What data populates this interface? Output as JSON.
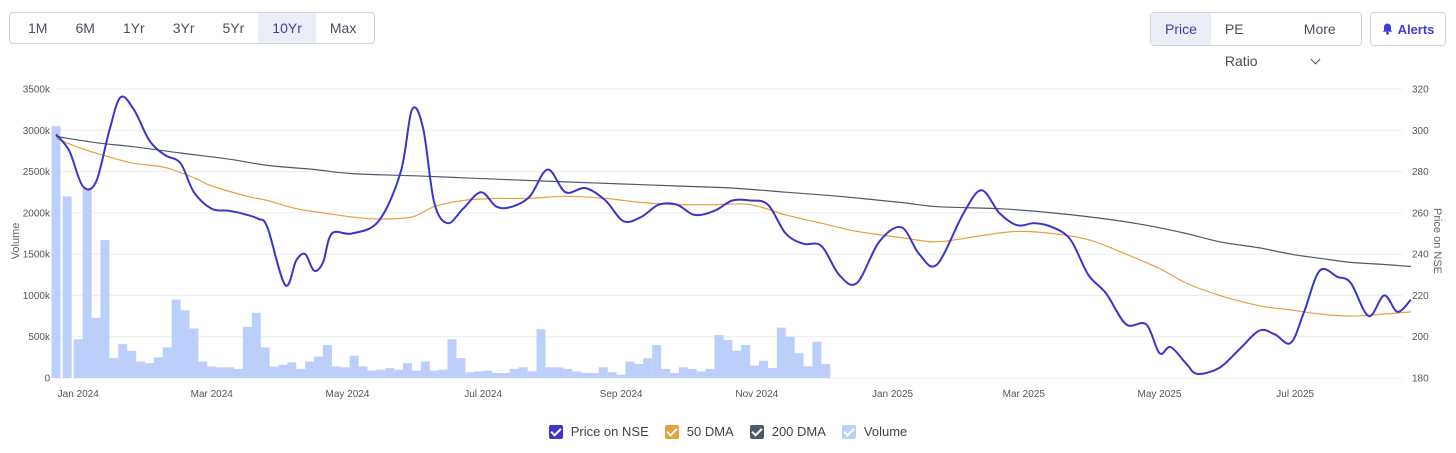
{
  "toolbar": {
    "ranges": [
      "1M",
      "6M",
      "1Yr",
      "3Yr",
      "5Yr",
      "10Yr",
      "Max"
    ],
    "active_range": "10Yr",
    "modes": [
      "Price",
      "PE Ratio"
    ],
    "active_mode": "Price",
    "more_label": "More",
    "alerts_label": "Alerts"
  },
  "colors": {
    "price": "#3b35c9",
    "dma50": "#e6a23c",
    "dma200": "#4d5a6a",
    "volume": "#bccffa"
  },
  "chart_data": {
    "type": "line",
    "ylabel_left": "Volume",
    "ylabel_right": "Price on NSE",
    "left_ticks": [
      "0",
      "500k",
      "1000k",
      "1500k",
      "2000k",
      "2500k",
      "3000k",
      "3500k"
    ],
    "right_ticks": [
      "180",
      "200",
      "220",
      "240",
      "260",
      "280",
      "300",
      "320"
    ],
    "ylim_left": [
      0,
      3500000
    ],
    "ylim_right": [
      180,
      320
    ],
    "x_ticks": [
      "Jan 2024",
      "Mar 2024",
      "May 2024",
      "Jul 2024",
      "Sep 2024",
      "Nov 2024",
      "Jan 2025",
      "Mar 2025",
      "May 2025",
      "Jul 2025"
    ],
    "x_tick_dates": [
      "2024-01-01",
      "2024-03-01",
      "2024-05-01",
      "2024-07-01",
      "2024-09-01",
      "2024-11-01",
      "2025-01-01",
      "2025-03-01",
      "2025-05-01",
      "2025-07-01"
    ],
    "x_range": [
      "2023-12-22",
      "2025-08-18"
    ],
    "legend": [
      "Price on NSE",
      "50 DMA",
      "200 DMA",
      "Volume"
    ],
    "legend_position": "bottom",
    "grid": true,
    "series": [
      {
        "name": "Price on NSE",
        "axis": "right",
        "points": [
          [
            "2023-12-22",
            298
          ],
          [
            "2023-12-28",
            290
          ],
          [
            "2024-01-03",
            273
          ],
          [
            "2024-01-09",
            275
          ],
          [
            "2024-01-15",
            300
          ],
          [
            "2024-01-20",
            316
          ],
          [
            "2024-01-26",
            310
          ],
          [
            "2024-02-02",
            295
          ],
          [
            "2024-02-09",
            288
          ],
          [
            "2024-02-16",
            284
          ],
          [
            "2024-02-22",
            270
          ],
          [
            "2024-03-01",
            262
          ],
          [
            "2024-03-09",
            261
          ],
          [
            "2024-03-17",
            259
          ],
          [
            "2024-03-22",
            257
          ],
          [
            "2024-03-26",
            253
          ],
          [
            "2024-04-03",
            225
          ],
          [
            "2024-04-08",
            237
          ],
          [
            "2024-04-12",
            240
          ],
          [
            "2024-04-16",
            232
          ],
          [
            "2024-04-20",
            236
          ],
          [
            "2024-04-24",
            250
          ],
          [
            "2024-05-03",
            250
          ],
          [
            "2024-05-15",
            256
          ],
          [
            "2024-05-25",
            280
          ],
          [
            "2024-05-30",
            310
          ],
          [
            "2024-06-04",
            301
          ],
          [
            "2024-06-09",
            265
          ],
          [
            "2024-06-15",
            255
          ],
          [
            "2024-06-22",
            262
          ],
          [
            "2024-06-30",
            270
          ],
          [
            "2024-07-07",
            263
          ],
          [
            "2024-07-14",
            263
          ],
          [
            "2024-07-22",
            268
          ],
          [
            "2024-07-30",
            281
          ],
          [
            "2024-08-07",
            270
          ],
          [
            "2024-08-16",
            272
          ],
          [
            "2024-08-25",
            266
          ],
          [
            "2024-09-02",
            256
          ],
          [
            "2024-09-10",
            258
          ],
          [
            "2024-09-18",
            264
          ],
          [
            "2024-09-26",
            264
          ],
          [
            "2024-10-04",
            259
          ],
          [
            "2024-10-13",
            261
          ],
          [
            "2024-10-21",
            266
          ],
          [
            "2024-10-29",
            266
          ],
          [
            "2024-11-06",
            264
          ],
          [
            "2024-11-14",
            250
          ],
          [
            "2024-11-22",
            245
          ],
          [
            "2024-11-30",
            244
          ],
          [
            "2024-12-08",
            230
          ],
          [
            "2024-12-16",
            226
          ],
          [
            "2024-12-26",
            246
          ],
          [
            "2025-01-05",
            253
          ],
          [
            "2025-01-13",
            240
          ],
          [
            "2025-01-21",
            235
          ],
          [
            "2025-02-02",
            260
          ],
          [
            "2025-02-10",
            271
          ],
          [
            "2025-02-18",
            260
          ],
          [
            "2025-02-26",
            254
          ],
          [
            "2025-03-06",
            255
          ],
          [
            "2025-03-14",
            253
          ],
          [
            "2025-03-22",
            247
          ],
          [
            "2025-03-30",
            230
          ],
          [
            "2025-04-07",
            221
          ],
          [
            "2025-04-16",
            206
          ],
          [
            "2025-04-25",
            206
          ],
          [
            "2025-05-01",
            192
          ],
          [
            "2025-05-06",
            195
          ],
          [
            "2025-05-13",
            187
          ],
          [
            "2025-05-18",
            182
          ],
          [
            "2025-05-28",
            185
          ],
          [
            "2025-06-06",
            194
          ],
          [
            "2025-06-15",
            203
          ],
          [
            "2025-06-22",
            201
          ],
          [
            "2025-06-29",
            197
          ],
          [
            "2025-07-05",
            212
          ],
          [
            "2025-07-12",
            232
          ],
          [
            "2025-07-20",
            229
          ],
          [
            "2025-07-26",
            226
          ],
          [
            "2025-08-03",
            210
          ],
          [
            "2025-08-10",
            220
          ],
          [
            "2025-08-16",
            212
          ],
          [
            "2025-08-22",
            218
          ]
        ]
      },
      {
        "name": "50 DMA",
        "axis": "right",
        "points": [
          [
            "2023-12-22",
            296
          ],
          [
            "2024-01-03",
            291
          ],
          [
            "2024-01-15",
            287
          ],
          [
            "2024-01-26",
            284
          ],
          [
            "2024-02-09",
            282
          ],
          [
            "2024-02-22",
            277
          ],
          [
            "2024-03-01",
            273
          ],
          [
            "2024-03-17",
            268
          ],
          [
            "2024-03-26",
            266
          ],
          [
            "2024-04-08",
            262
          ],
          [
            "2024-04-20",
            260
          ],
          [
            "2024-05-03",
            258
          ],
          [
            "2024-05-15",
            257
          ],
          [
            "2024-05-30",
            258
          ],
          [
            "2024-06-09",
            263
          ],
          [
            "2024-06-22",
            266
          ],
          [
            "2024-07-07",
            267
          ],
          [
            "2024-07-22",
            267
          ],
          [
            "2024-08-07",
            268
          ],
          [
            "2024-08-25",
            267
          ],
          [
            "2024-09-10",
            265
          ],
          [
            "2024-09-26",
            264
          ],
          [
            "2024-10-13",
            264
          ],
          [
            "2024-10-29",
            264
          ],
          [
            "2024-11-14",
            259
          ],
          [
            "2024-11-30",
            255
          ],
          [
            "2024-12-16",
            251
          ],
          [
            "2025-01-05",
            248
          ],
          [
            "2025-01-21",
            246
          ],
          [
            "2025-02-10",
            249
          ],
          [
            "2025-02-26",
            251
          ],
          [
            "2025-03-14",
            250
          ],
          [
            "2025-03-30",
            247
          ],
          [
            "2025-04-16",
            240
          ],
          [
            "2025-05-01",
            233
          ],
          [
            "2025-05-13",
            226
          ],
          [
            "2025-05-28",
            220
          ],
          [
            "2025-06-15",
            215
          ],
          [
            "2025-06-29",
            213
          ],
          [
            "2025-07-12",
            211
          ],
          [
            "2025-07-26",
            210
          ],
          [
            "2025-08-10",
            211
          ],
          [
            "2025-08-22",
            212
          ]
        ]
      },
      {
        "name": "200 DMA",
        "axis": "right",
        "points": [
          [
            "2023-12-22",
            297
          ],
          [
            "2024-01-09",
            294
          ],
          [
            "2024-01-26",
            292
          ],
          [
            "2024-02-16",
            289
          ],
          [
            "2024-03-09",
            286
          ],
          [
            "2024-03-26",
            283
          ],
          [
            "2024-04-16",
            281
          ],
          [
            "2024-05-03",
            279
          ],
          [
            "2024-05-30",
            278
          ],
          [
            "2024-06-22",
            277
          ],
          [
            "2024-07-14",
            276
          ],
          [
            "2024-08-07",
            275
          ],
          [
            "2024-09-02",
            274
          ],
          [
            "2024-09-26",
            273
          ],
          [
            "2024-10-21",
            272
          ],
          [
            "2024-11-14",
            270
          ],
          [
            "2024-12-08",
            268
          ],
          [
            "2025-01-05",
            265
          ],
          [
            "2025-01-21",
            263
          ],
          [
            "2025-02-18",
            262
          ],
          [
            "2025-03-14",
            260
          ],
          [
            "2025-04-07",
            257
          ],
          [
            "2025-04-25",
            254
          ],
          [
            "2025-05-13",
            250
          ],
          [
            "2025-05-28",
            246
          ],
          [
            "2025-06-15",
            243
          ],
          [
            "2025-06-29",
            240
          ],
          [
            "2025-07-12",
            238
          ],
          [
            "2025-07-26",
            236
          ],
          [
            "2025-08-10",
            235
          ],
          [
            "2025-08-22",
            234
          ]
        ]
      },
      {
        "name": "Volume",
        "axis": "left",
        "type": "bar",
        "points": [
          [
            "2023-12-22",
            3050000
          ],
          [
            "2023-12-27",
            2200000
          ],
          [
            "2024-01-01",
            470000
          ],
          [
            "2024-01-05",
            2300000
          ],
          [
            "2024-01-09",
            730000
          ],
          [
            "2024-01-13",
            1670000
          ],
          [
            "2024-01-17",
            240000
          ],
          [
            "2024-01-21",
            410000
          ],
          [
            "2024-01-25",
            330000
          ],
          [
            "2024-01-29",
            200000
          ],
          [
            "2024-02-02",
            180000
          ],
          [
            "2024-02-06",
            250000
          ],
          [
            "2024-02-10",
            370000
          ],
          [
            "2024-02-14",
            950000
          ],
          [
            "2024-02-18",
            820000
          ],
          [
            "2024-02-22",
            600000
          ],
          [
            "2024-02-26",
            200000
          ],
          [
            "2024-03-01",
            140000
          ],
          [
            "2024-03-05",
            130000
          ],
          [
            "2024-03-09",
            130000
          ],
          [
            "2024-03-13",
            110000
          ],
          [
            "2024-03-17",
            620000
          ],
          [
            "2024-03-21",
            790000
          ],
          [
            "2024-03-25",
            370000
          ],
          [
            "2024-03-29",
            140000
          ],
          [
            "2024-04-02",
            160000
          ],
          [
            "2024-04-06",
            190000
          ],
          [
            "2024-04-10",
            110000
          ],
          [
            "2024-04-14",
            200000
          ],
          [
            "2024-04-18",
            260000
          ],
          [
            "2024-04-22",
            400000
          ],
          [
            "2024-04-26",
            140000
          ],
          [
            "2024-04-30",
            130000
          ],
          [
            "2024-05-04",
            270000
          ],
          [
            "2024-05-08",
            140000
          ],
          [
            "2024-05-12",
            90000
          ],
          [
            "2024-05-16",
            100000
          ],
          [
            "2024-05-20",
            120000
          ],
          [
            "2024-05-24",
            100000
          ],
          [
            "2024-05-28",
            180000
          ],
          [
            "2024-06-01",
            90000
          ],
          [
            "2024-06-05",
            200000
          ],
          [
            "2024-06-09",
            90000
          ],
          [
            "2024-06-13",
            100000
          ],
          [
            "2024-06-17",
            470000
          ],
          [
            "2024-06-21",
            240000
          ],
          [
            "2024-06-25",
            70000
          ],
          [
            "2024-06-29",
            80000
          ],
          [
            "2024-07-03",
            90000
          ],
          [
            "2024-07-07",
            60000
          ],
          [
            "2024-07-11",
            60000
          ],
          [
            "2024-07-15",
            110000
          ],
          [
            "2024-07-19",
            130000
          ],
          [
            "2024-07-23",
            80000
          ],
          [
            "2024-07-27",
            590000
          ],
          [
            "2024-07-31",
            130000
          ],
          [
            "2024-08-04",
            130000
          ],
          [
            "2024-08-08",
            110000
          ],
          [
            "2024-08-12",
            80000
          ],
          [
            "2024-08-16",
            60000
          ],
          [
            "2024-08-20",
            60000
          ],
          [
            "2024-08-24",
            130000
          ],
          [
            "2024-08-28",
            70000
          ],
          [
            "2024-09-01",
            40000
          ],
          [
            "2024-09-05",
            200000
          ],
          [
            "2024-09-09",
            170000
          ],
          [
            "2024-09-13",
            240000
          ],
          [
            "2024-09-17",
            400000
          ],
          [
            "2024-09-21",
            110000
          ],
          [
            "2024-09-25",
            60000
          ],
          [
            "2024-09-29",
            130000
          ],
          [
            "2024-10-03",
            110000
          ],
          [
            "2024-10-07",
            80000
          ],
          [
            "2024-10-11",
            110000
          ],
          [
            "2024-10-15",
            520000
          ],
          [
            "2024-10-19",
            460000
          ],
          [
            "2024-10-23",
            330000
          ],
          [
            "2024-10-27",
            400000
          ],
          [
            "2024-10-31",
            150000
          ],
          [
            "2024-11-04",
            210000
          ],
          [
            "2024-11-08",
            120000
          ],
          [
            "2024-11-12",
            610000
          ],
          [
            "2024-11-16",
            500000
          ],
          [
            "2024-11-20",
            300000
          ],
          [
            "2024-11-24",
            140000
          ],
          [
            "2024-11-28",
            440000
          ],
          [
            "2024-12-02",
            170000
          ]
        ]
      }
    ]
  }
}
